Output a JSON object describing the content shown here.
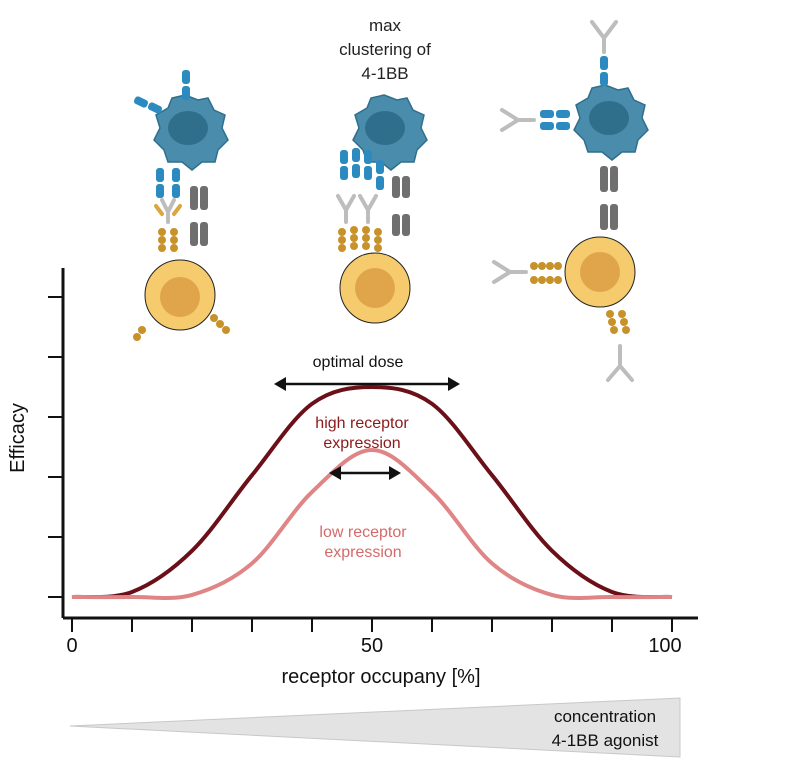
{
  "annotation_top": [
    "max",
    "clustering of",
    "4-1BB"
  ],
  "chart_data": {
    "type": "line",
    "ylabel": "Efficacy",
    "xlabel": "receptor occupany [%]",
    "x_tick_labels": [
      "0",
      "50",
      "100"
    ],
    "xlim": [
      0,
      100
    ],
    "series": [
      {
        "name": "high receptor expression",
        "color": "#6b1019",
        "x": [
          0,
          10,
          20,
          30,
          40,
          50,
          60,
          70,
          80,
          90,
          100
        ],
        "y": [
          0,
          0.12,
          1.1,
          2.9,
          4.6,
          5.0,
          4.6,
          2.9,
          1.1,
          0.12,
          0
        ]
      },
      {
        "name": "low receptor expression",
        "color": "#e08585",
        "x": [
          0,
          10,
          20,
          30,
          40,
          50,
          60,
          70,
          80,
          90,
          100
        ],
        "y": [
          0,
          0,
          0.05,
          0.8,
          2.5,
          3.5,
          2.5,
          0.8,
          0.05,
          0,
          0
        ]
      }
    ],
    "annotations": [
      {
        "text": "optimal dose",
        "x_range": [
          30,
          65
        ]
      },
      {
        "text": "",
        "x_range": [
          43,
          55
        ]
      }
    ]
  },
  "labels": {
    "high_expr": [
      "high receptor",
      "expression"
    ],
    "low_expr": [
      "low receptor",
      "expression"
    ],
    "optimal_dose": "optimal dose"
  },
  "concentration": [
    "concentration",
    "4-1BB agonist"
  ],
  "colors": {
    "high": "#6b1019",
    "low": "#e08585",
    "label_high": "#8b1a1a",
    "label_low": "#d46a6a",
    "tumor_cell": "#3e7f9c",
    "t_cell": "#f5cb6e",
    "receptor_blue": "#2b8bc0",
    "receptor_gold": "#c8922a",
    "ligand_grey": "#6f6f6f"
  }
}
